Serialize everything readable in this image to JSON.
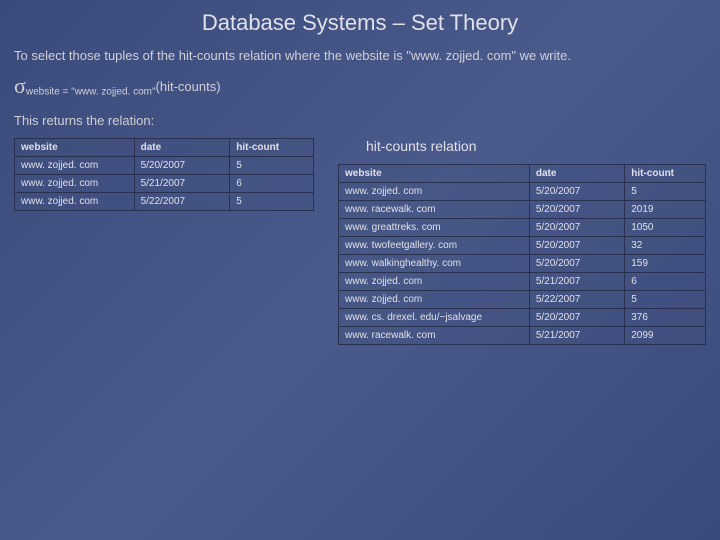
{
  "title": "Database Systems – Set Theory",
  "intro": "To select those tuples of the hit-counts relation where the website is \"www. zojjed. com\" we write.",
  "formula": {
    "sigma": "σ",
    "subscript": "website = \"www. zojjed. com\"",
    "arg": "(hit-counts)"
  },
  "returns_label": "This returns the relation:",
  "right_caption": "hit-counts relation",
  "left_table": {
    "columns": [
      "website",
      "date",
      "hit-count"
    ],
    "rows": [
      [
        "www. zojjed. com",
        "5/20/2007",
        "5"
      ],
      [
        "www. zojjed. com",
        "5/21/2007",
        "6"
      ],
      [
        "www. zojjed. com",
        "5/22/2007",
        "5"
      ]
    ]
  },
  "right_table": {
    "columns": [
      "website",
      "date",
      "hit-count"
    ],
    "rows": [
      [
        "www. zojjed. com",
        "5/20/2007",
        "5"
      ],
      [
        "www. racewalk. com",
        "5/20/2007",
        "2019"
      ],
      [
        "www. greattreks. com",
        "5/20/2007",
        "1050"
      ],
      [
        "www. twofeetgallery. com",
        "5/20/2007",
        "32"
      ],
      [
        "www. walkinghealthy. com",
        "5/20/2007",
        "159"
      ],
      [
        "www. zojjed. com",
        "5/21/2007",
        "6"
      ],
      [
        "www. zojjed. com",
        "5/22/2007",
        "5"
      ],
      [
        "www. cs. drexel. edu/~jsalvage",
        "5/20/2007",
        "376"
      ],
      [
        "www. racewalk. com",
        "5/21/2007",
        "2099"
      ]
    ]
  },
  "colors": {
    "bg_gradient_start": "#3a4a7a",
    "bg_gradient_mid": "#4a5a8a",
    "text": "#d0d0d8",
    "border": "#2a3050"
  }
}
